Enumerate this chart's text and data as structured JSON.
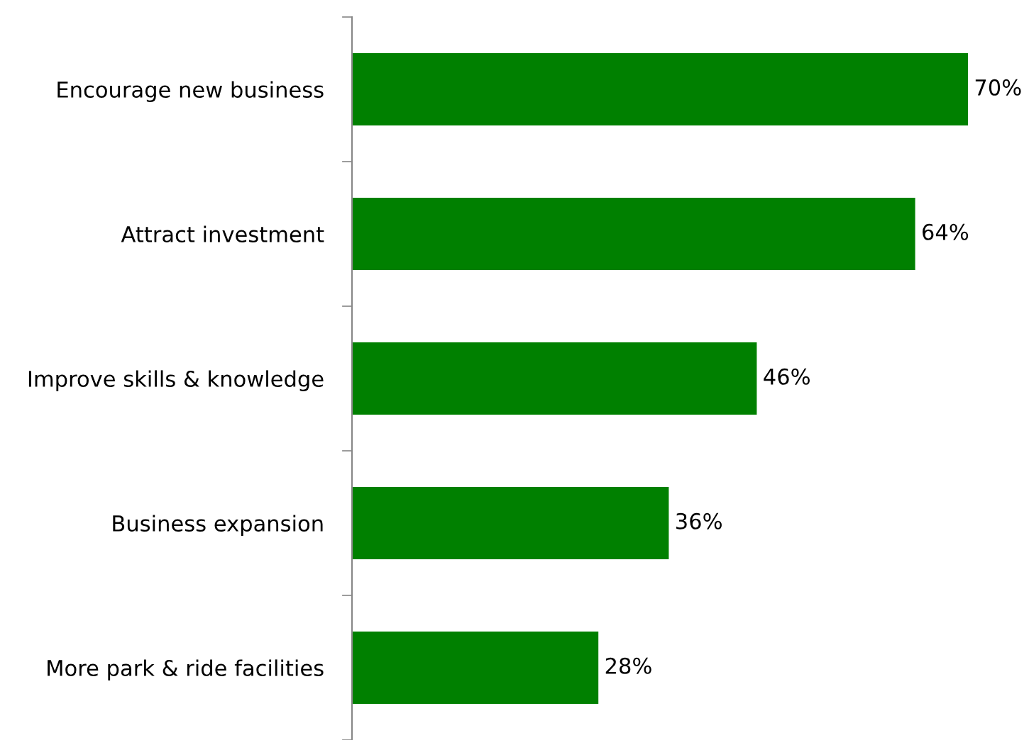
{
  "chart_data": {
    "type": "bar",
    "orientation": "horizontal",
    "categories": [
      "Encourage new business",
      "Attract investment",
      "Improve skills & knowledge",
      "Business expansion",
      "More park & ride facilities"
    ],
    "values": [
      70,
      64,
      46,
      36,
      28
    ],
    "value_labels": [
      "70%",
      "64%",
      "46%",
      "36%",
      "28%"
    ],
    "color": "#008000",
    "grid": false,
    "legend": false
  }
}
